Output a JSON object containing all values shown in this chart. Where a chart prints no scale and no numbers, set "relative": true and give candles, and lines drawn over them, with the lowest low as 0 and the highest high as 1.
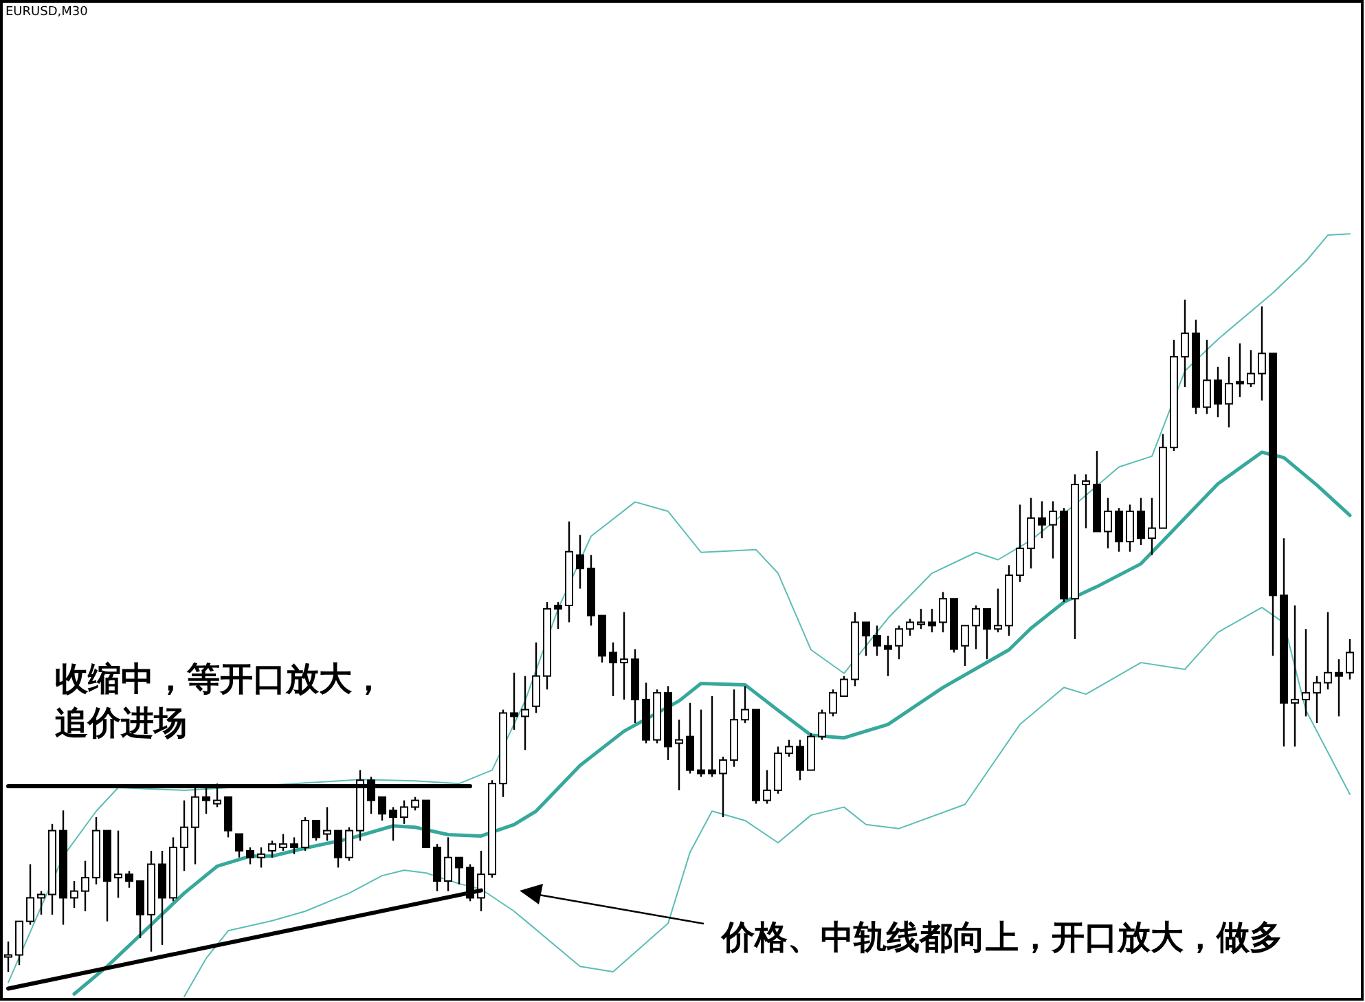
{
  "chart_data": {
    "type": "candlestick",
    "title": "EURUSD,M30",
    "relative": true,
    "categories": [
      null,
      null,
      null,
      null,
      null,
      null,
      null,
      null,
      null,
      null,
      null,
      null,
      null,
      null,
      null,
      null,
      null,
      null,
      null,
      null,
      null,
      null,
      null,
      null,
      null,
      null,
      null,
      null,
      null,
      null,
      null,
      null,
      null,
      null,
      null,
      null,
      null,
      null,
      null,
      null,
      null,
      null,
      null,
      null,
      null,
      null,
      null,
      null,
      null,
      null,
      null,
      null,
      null,
      null,
      null,
      null,
      null,
      null,
      null,
      null,
      null,
      null,
      null,
      null,
      null,
      null,
      null,
      null,
      null,
      null,
      null,
      null,
      null,
      null,
      null,
      null,
      null,
      null,
      null,
      null,
      null,
      null,
      null,
      null,
      null,
      null,
      null,
      null,
      null,
      null,
      null,
      null,
      null,
      null,
      null,
      null,
      null,
      null,
      null,
      null,
      null,
      null,
      null,
      null,
      null,
      null,
      null,
      null,
      null,
      null,
      null,
      null,
      null,
      null,
      null,
      null,
      null,
      null,
      null,
      null,
      null,
      null,
      null
    ],
    "ohlc": [
      [
        0.025,
        0.045,
        0,
        0.025
      ],
      [
        0.025,
        0.075,
        0.01,
        0.075
      ],
      [
        0.075,
        0.16,
        0.07,
        0.11
      ],
      [
        0.11,
        0.12,
        0.085,
        0.115
      ],
      [
        0.115,
        0.22,
        0.085,
        0.21
      ],
      [
        0.21,
        0.24,
        0.07,
        0.11
      ],
      [
        0.11,
        0.135,
        0.095,
        0.12
      ],
      [
        0.12,
        0.165,
        0.09,
        0.14
      ],
      [
        0.14,
        0.23,
        0.13,
        0.21
      ],
      [
        0.21,
        0.21,
        0.075,
        0.135
      ],
      [
        0.14,
        0.21,
        0.11,
        0.145
      ],
      [
        0.145,
        0.15,
        0.125,
        0.135
      ],
      [
        0.135,
        0.135,
        0.05,
        0.085
      ],
      [
        0.085,
        0.18,
        0.03,
        0.16
      ],
      [
        0.16,
        0.18,
        0.04,
        0.11
      ],
      [
        0.11,
        0.2,
        0.105,
        0.185
      ],
      [
        0.185,
        0.255,
        0.15,
        0.215
      ],
      [
        0.215,
        0.275,
        0.16,
        0.26
      ],
      [
        0.26,
        0.275,
        0.235,
        0.255
      ],
      [
        0.25,
        0.28,
        0.245,
        0.255
      ],
      [
        0.26,
        0.26,
        0.2,
        0.21
      ],
      [
        0.205,
        0.205,
        0.17,
        0.18
      ],
      [
        0.18,
        0.185,
        0.16,
        0.17
      ],
      [
        0.17,
        0.185,
        0.155,
        0.175
      ],
      [
        0.18,
        0.195,
        0.17,
        0.19
      ],
      [
        0.185,
        0.205,
        0.18,
        0.19
      ],
      [
        0.19,
        0.2,
        0.175,
        0.185
      ],
      [
        0.185,
        0.23,
        0.18,
        0.225
      ],
      [
        0.225,
        0.225,
        0.195,
        0.2
      ],
      [
        0.205,
        0.245,
        0.195,
        0.21
      ],
      [
        0.21,
        0.21,
        0.155,
        0.17
      ],
      [
        0.17,
        0.215,
        0.165,
        0.21
      ],
      [
        0.21,
        0.3,
        0.195,
        0.285
      ],
      [
        0.285,
        0.29,
        0.235,
        0.255
      ],
      [
        0.26,
        0.26,
        0.225,
        0.235
      ],
      [
        0.24,
        0.245,
        0.195,
        0.23
      ],
      [
        0.23,
        0.255,
        0.22,
        0.245
      ],
      [
        0.245,
        0.26,
        0.24,
        0.255
      ],
      [
        0.255,
        0.255,
        0.185,
        0.185
      ],
      [
        0.185,
        0.19,
        0.12,
        0.135
      ],
      [
        0.135,
        0.2,
        0.12,
        0.17
      ],
      [
        0.17,
        0.17,
        0.13,
        0.155
      ],
      [
        0.155,
        0.16,
        0.105,
        0.11
      ],
      [
        0.11,
        0.18,
        0.09,
        0.145
      ],
      [
        0.145,
        0.285,
        0.14,
        0.28
      ],
      [
        0.28,
        0.39,
        0.26,
        0.385
      ],
      [
        0.385,
        0.445,
        0.36,
        0.38
      ],
      [
        0.38,
        0.44,
        0.33,
        0.39
      ],
      [
        0.395,
        0.49,
        0.385,
        0.44
      ],
      [
        0.44,
        0.55,
        0.42,
        0.54
      ],
      [
        0.545,
        0.55,
        0.51,
        0.54
      ],
      [
        0.545,
        0.67,
        0.52,
        0.625
      ],
      [
        0.62,
        0.65,
        0.57,
        0.6
      ],
      [
        0.6,
        0.62,
        0.515,
        0.53
      ],
      [
        0.53,
        0.53,
        0.46,
        0.47
      ],
      [
        0.475,
        0.49,
        0.41,
        0.46
      ],
      [
        0.46,
        0.535,
        0.405,
        0.465
      ],
      [
        0.465,
        0.48,
        0.37,
        0.405
      ],
      [
        0.405,
        0.43,
        0.34,
        0.345
      ],
      [
        0.345,
        0.42,
        0.34,
        0.415
      ],
      [
        0.415,
        0.425,
        0.315,
        0.335
      ],
      [
        0.34,
        0.375,
        0.27,
        0.345
      ],
      [
        0.35,
        0.4,
        0.295,
        0.3
      ],
      [
        0.3,
        0.39,
        0.29,
        0.295
      ],
      [
        0.3,
        0.41,
        0.29,
        0.295
      ],
      [
        0.295,
        0.32,
        0.23,
        0.315
      ],
      [
        0.315,
        0.42,
        0.305,
        0.375
      ],
      [
        0.375,
        0.425,
        0.37,
        0.39
      ],
      [
        0.39,
        0.39,
        0.25,
        0.255
      ],
      [
        0.255,
        0.3,
        0.25,
        0.27
      ],
      [
        0.27,
        0.335,
        0.265,
        0.325
      ],
      [
        0.325,
        0.345,
        0.32,
        0.335
      ],
      [
        0.335,
        0.345,
        0.285,
        0.3
      ],
      [
        0.3,
        0.355,
        0.3,
        0.35
      ],
      [
        0.35,
        0.39,
        0.345,
        0.385
      ],
      [
        0.385,
        0.42,
        0.38,
        0.415
      ],
      [
        0.41,
        0.44,
        0.41,
        0.435
      ],
      [
        0.435,
        0.535,
        0.425,
        0.52
      ],
      [
        0.52,
        0.52,
        0.47,
        0.5
      ],
      [
        0.5,
        0.515,
        0.47,
        0.485
      ],
      [
        0.485,
        0.5,
        0.44,
        0.48
      ],
      [
        0.485,
        0.515,
        0.465,
        0.51
      ],
      [
        0.51,
        0.525,
        0.5,
        0.52
      ],
      [
        0.52,
        0.54,
        0.51,
        0.52
      ],
      [
        0.52,
        0.54,
        0.505,
        0.515
      ],
      [
        0.52,
        0.565,
        0.505,
        0.555
      ],
      [
        0.555,
        0.555,
        0.475,
        0.48
      ],
      [
        0.485,
        0.515,
        0.455,
        0.515
      ],
      [
        0.515,
        0.545,
        0.48,
        0.54
      ],
      [
        0.54,
        0.54,
        0.465,
        0.51
      ],
      [
        0.51,
        0.57,
        0.505,
        0.515
      ],
      [
        0.515,
        0.605,
        0.5,
        0.59
      ],
      [
        0.59,
        0.695,
        0.58,
        0.63
      ],
      [
        0.63,
        0.705,
        0.6,
        0.675
      ],
      [
        0.675,
        0.7,
        0.645,
        0.665
      ],
      [
        0.665,
        0.7,
        0.615,
        0.685
      ],
      [
        0.685,
        0.69,
        0.55,
        0.555
      ],
      [
        0.555,
        0.74,
        0.495,
        0.725
      ],
      [
        0.725,
        0.74,
        0.66,
        0.73
      ],
      [
        0.725,
        0.775,
        0.655,
        0.655
      ],
      [
        0.655,
        0.705,
        0.63,
        0.685
      ],
      [
        0.685,
        0.69,
        0.625,
        0.64
      ],
      [
        0.64,
        0.695,
        0.625,
        0.685
      ],
      [
        0.685,
        0.705,
        0.635,
        0.645
      ],
      [
        0.645,
        0.705,
        0.62,
        0.66
      ],
      [
        0.66,
        0.8,
        0.66,
        0.78
      ],
      [
        0.78,
        0.94,
        0.775,
        0.915
      ],
      [
        0.915,
        1,
        0.87,
        0.95
      ],
      [
        0.95,
        0.97,
        0.83,
        0.84
      ],
      [
        0.84,
        0.94,
        0.83,
        0.88
      ],
      [
        0.88,
        0.9,
        0.825,
        0.845
      ],
      [
        0.845,
        0.915,
        0.81,
        0.875
      ],
      [
        0.878,
        0.935,
        0.855,
        0.875
      ],
      [
        0.875,
        0.925,
        0.87,
        0.89
      ],
      [
        0.89,
        0.99,
        0.85,
        0.92
      ],
      [
        0.92,
        0.92,
        0.47,
        0.56
      ],
      [
        0.56,
        0.645,
        0.335,
        0.4
      ],
      [
        0.4,
        0.545,
        0.335,
        0.405
      ],
      [
        0.405,
        0.51,
        0.38,
        0.415
      ],
      [
        0.415,
        0.44,
        0.37,
        0.43
      ],
      [
        0.43,
        0.535,
        0.42,
        0.445
      ],
      [
        0.445,
        0.465,
        0.38,
        0.44
      ],
      [
        0.445,
        0.495,
        0.435,
        0.475
      ]
    ],
    "series": [
      {
        "type": "line",
        "color": "#5cbdb5",
        "values": [
          -0.016,
          null,
          null,
          null,
          null,
          0.172,
          null,
          null,
          0.239,
          null,
          0.274,
          null,
          null,
          null,
          null,
          null,
          0.27,
          null,
          null,
          null,
          null,
          null,
          null,
          null,
          null,
          null,
          null,
          null,
          null,
          null,
          null,
          null,
          0.286,
          null,
          null,
          null,
          null,
          0.284,
          null,
          null,
          null,
          0.28,
          null,
          null,
          0.3,
          null,
          null,
          0.403,
          null,
          null,
          0.54,
          null,
          null,
          0.648,
          null,
          null,
          null,
          0.699,
          null,
          null,
          0.685,
          null,
          null,
          0.624,
          null,
          null,
          null,
          null,
          0.628,
          null,
          0.593,
          null,
          null,
          0.479,
          null,
          null,
          0.444,
          null,
          null,
          null,
          0.526,
          null,
          null,
          null,
          0.593,
          null,
          null,
          null,
          0.624,
          null,
          0.613,
          null,
          null,
          0.642,
          null,
          null,
          null,
          0.695,
          null,
          null,
          null,
          0.751,
          null,
          null,
          0.767,
          null,
          null,
          0.894,
          null,
          null,
          0.941,
          null,
          null,
          null,
          null,
          1.01,
          null,
          null,
          1.057,
          null,
          1.096,
          null,
          1.098
        ]
      },
      {
        "type": "line",
        "color": "#36a89c",
        "values": [
          null,
          null,
          null,
          null,
          null,
          null,
          -0.033,
          null,
          null,
          0.008,
          null,
          null,
          null,
          0.07,
          null,
          null,
          0.117,
          null,
          null,
          0.157,
          null,
          null,
          0.172,
          null,
          0.172,
          null,
          null,
          0.184,
          null,
          null,
          null,
          0.198,
          null,
          null,
          null,
          0.217,
          null,
          0.215,
          null,
          null,
          0.204,
          null,
          null,
          0.202,
          null,
          null,
          0.219,
          null,
          0.239,
          null,
          null,
          null,
          0.307,
          null,
          null,
          null,
          0.358,
          null,
          null,
          null,
          null,
          0.403,
          null,
          0.429,
          null,
          null,
          null,
          0.427,
          null,
          null,
          0.389,
          null,
          null,
          0.352,
          null,
          null,
          0.348,
          null,
          null,
          null,
          0.368,
          null,
          null,
          null,
          null,
          0.423,
          null,
          null,
          null,
          null,
          null,
          0.479,
          null,
          0.511,
          null,
          null,
          0.55,
          null,
          null,
          0.573,
          null,
          null,
          null,
          0.607,
          null,
          null,
          null,
          0.675,
          null,
          null,
          0.726,
          null,
          null,
          null,
          0.773,
          null,
          0.765,
          null,
          null,
          0.724,
          null,
          null,
          0.679
        ]
      },
      {
        "type": "line",
        "color": "#5cbdb5",
        "values": [
          null,
          null,
          null,
          null,
          null,
          null,
          null,
          null,
          null,
          null,
          null,
          null,
          null,
          null,
          null,
          null,
          -0.037,
          null,
          0.02,
          null,
          0.061,
          null,
          null,
          null,
          0.076,
          null,
          null,
          0.09,
          null,
          null,
          null,
          0.117,
          null,
          null,
          0.143,
          null,
          0.151,
          null,
          0.147,
          null,
          null,
          0.131,
          null,
          0.123,
          null,
          null,
          0.09,
          null,
          null,
          null,
          null,
          null,
          0.008,
          null,
          null,
          0,
          null,
          null,
          null,
          null,
          0.072,
          null,
          0.178,
          null,
          0.239,
          null,
          null,
          0.225,
          null,
          null,
          0.192,
          null,
          null,
          0.233,
          null,
          null,
          0.245,
          null,
          0.219,
          null,
          null,
          0.213,
          null,
          null,
          null,
          null,
          null,
          0.249,
          null,
          null,
          null,
          null,
          0.368,
          null,
          null,
          null,
          0.423,
          null,
          0.413,
          null,
          null,
          null,
          null,
          0.46,
          null,
          null,
          null,
          0.45,
          null,
          null,
          0.505,
          null,
          null,
          null,
          0.542,
          null,
          0.519,
          null,
          0.389,
          null,
          null,
          null,
          0.264
        ]
      },
      {
        "type": "line",
        "color": "#000000",
        "values": [
          0.276,
          null,
          null,
          null,
          null,
          null,
          null,
          null,
          null,
          null,
          null,
          null,
          null,
          null,
          null,
          null,
          null,
          null,
          null,
          null,
          null,
          null,
          null,
          null,
          null,
          null,
          null,
          null,
          null,
          null,
          null,
          null,
          null,
          null,
          null,
          null,
          null,
          null,
          null,
          null,
          null,
          null,
          0.276,
          null,
          null,
          null,
          null,
          null,
          null,
          null,
          null,
          null,
          null,
          null,
          null,
          null,
          null,
          null,
          null,
          null,
          null,
          null,
          null,
          null,
          null,
          null,
          null,
          null,
          null,
          null,
          null,
          null,
          null,
          null,
          null,
          null,
          null,
          null,
          null,
          null,
          null,
          null,
          null,
          null,
          null,
          null,
          null,
          null,
          null,
          null,
          null,
          null,
          null,
          null,
          null,
          null,
          null,
          null,
          null,
          null,
          null,
          null,
          null,
          null,
          null,
          null,
          null,
          null,
          null,
          null,
          null,
          null,
          null,
          null,
          null,
          null,
          null,
          null,
          null,
          null,
          null,
          null,
          null
        ]
      },
      {
        "type": "line",
        "color": "#000000",
        "values": [
          -0.025,
          null,
          null,
          null,
          null,
          null,
          null,
          null,
          null,
          null,
          null,
          null,
          null,
          null,
          null,
          null,
          null,
          null,
          null,
          null,
          null,
          null,
          null,
          null,
          null,
          null,
          null,
          null,
          null,
          null,
          null,
          null,
          null,
          null,
          null,
          null,
          null,
          null,
          null,
          null,
          null,
          null,
          null,
          0.121,
          null,
          null,
          null,
          null,
          null,
          null,
          null,
          null,
          null,
          null,
          null,
          null,
          null,
          null,
          null,
          null,
          null,
          null,
          null,
          null,
          null,
          null,
          null,
          null,
          null,
          null,
          null,
          null,
          null,
          null,
          null,
          null,
          null,
          null,
          null,
          null,
          null,
          null,
          null,
          null,
          null,
          null,
          null,
          null,
          null,
          null,
          null,
          null,
          null,
          null,
          null,
          null,
          null,
          null,
          null,
          null,
          null,
          null,
          null,
          null,
          null,
          null,
          null,
          null,
          null,
          null,
          null,
          null,
          null,
          null,
          null,
          null,
          null,
          null,
          null,
          null,
          null,
          null,
          null
        ]
      }
    ],
    "annotations": [
      "收缩中，等开口放大，追价进场",
      "价格、中轨线都向上，开口放大，做多"
    ]
  }
}
